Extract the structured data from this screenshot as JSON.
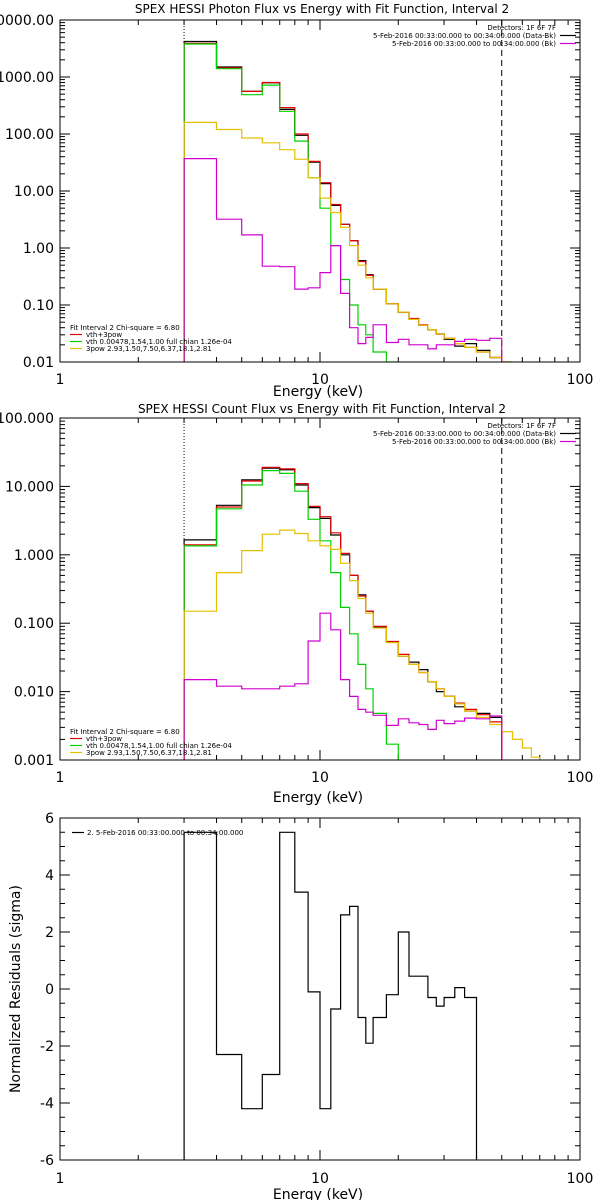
{
  "colors": {
    "black": "#000000",
    "red": "#e00000",
    "green": "#00d000",
    "yellow": "#e6c000",
    "magenta": "#d000d0"
  },
  "chart_data": [
    {
      "type": "line",
      "title": "SPEX HESSI Photon Flux vs Energy with Fit Function, Interval 2",
      "xlabel": "Energy (keV)",
      "ylabel": "",
      "xscale": "log",
      "yscale": "log",
      "xlim": [
        1,
        100
      ],
      "ylim": [
        0.01,
        10000
      ],
      "xticks": [
        {
          "v": 1,
          "label": "1"
        },
        {
          "v": 10,
          "label": "10"
        },
        {
          "v": 100,
          "label": "100"
        }
      ],
      "yticks": [
        {
          "v": 10000,
          "label": "10000.00"
        },
        {
          "v": 1000,
          "label": "1000.00"
        },
        {
          "v": 100,
          "label": "100.00"
        },
        {
          "v": 10,
          "label": "10.00"
        },
        {
          "v": 1,
          "label": "1.00"
        },
        {
          "v": 0.1,
          "label": "0.10"
        },
        {
          "v": 0.01,
          "label": "0.01"
        }
      ],
      "vlines": [
        {
          "x": 3,
          "style": "dotted"
        },
        {
          "x": 50,
          "style": "dashed"
        }
      ],
      "legend_top": [
        {
          "text": "Detectors: 1F 6F 7F",
          "color": "black"
        },
        {
          "text": "5-Feb-2016 00:33:00.000 to 00:34:00.000 (Data-Bk)",
          "color": "black"
        },
        {
          "text": "5-Feb-2016 00:33:00.000 to 00:34:00.000 (Bk)",
          "color": "magenta"
        }
      ],
      "legend_bottom": [
        {
          "text": "Fit Interval 2   Chi-square = 6.80",
          "color": "black"
        },
        {
          "text": "vth+3pow",
          "color": "red"
        },
        {
          "text": "vth 0.00478,1.54,1.00  full chian 1.26e-04",
          "color": "green"
        },
        {
          "text": "3pow 2.93,1.50,7.50,6.37,18.1,2.81",
          "color": "yellow"
        }
      ],
      "edges": [
        3,
        4,
        5,
        6,
        7,
        8,
        9,
        10,
        11,
        12,
        13,
        14,
        15,
        16,
        18,
        20,
        22,
        24,
        26,
        28,
        30,
        33,
        36,
        40,
        45,
        50,
        55
      ],
      "series": [
        {
          "color": "black",
          "values": [
            4200,
            1500,
            560,
            790,
            270,
            95,
            32,
            13.5,
            5.6,
            2.6,
            1.35,
            0.6,
            0.34,
            0.19,
            0.105,
            0.075,
            0.056,
            0.044,
            0.037,
            0.031,
            0.025,
            0.019,
            0.021,
            0.016,
            0.012,
            null
          ]
        },
        {
          "color": "red",
          "values": [
            3900,
            1450,
            560,
            800,
            290,
            100,
            33,
            14,
            5.8,
            2.6,
            1.35,
            0.58,
            0.33,
            0.19,
            0.105,
            0.075,
            0.058,
            0.045,
            0.037,
            0.031,
            0.026,
            0.021,
            0.018,
            0.015,
            0.012,
            0.01
          ]
        },
        {
          "color": "green",
          "values": [
            3800,
            1400,
            490,
            720,
            250,
            75,
            17,
            5,
            1.1,
            0.28,
            0.1,
            0.045,
            0.03,
            0.015,
            0.01,
            null,
            null,
            null,
            null,
            null,
            null,
            null,
            null,
            null,
            null,
            null
          ]
        },
        {
          "color": "yellow",
          "values": [
            160,
            120,
            85,
            70,
            53,
            36,
            17,
            7.5,
            4.2,
            2.3,
            1.1,
            0.5,
            0.3,
            0.19,
            0.105,
            0.075,
            0.056,
            0.044,
            0.037,
            0.031,
            0.026,
            0.021,
            0.018,
            0.015,
            0.012,
            0.01
          ]
        },
        {
          "color": "magenta",
          "values": [
            37,
            3.2,
            1.7,
            0.48,
            0.47,
            0.19,
            0.2,
            0.37,
            1.1,
            0.16,
            0.04,
            0.021,
            0.027,
            0.045,
            0.022,
            0.025,
            0.02,
            0.02,
            0.017,
            0.02,
            0.02,
            0.023,
            0.025,
            0.024,
            0.026,
            null
          ]
        }
      ]
    },
    {
      "type": "line",
      "title": "SPEX HESSI Count Flux vs Energy with Fit Function, Interval 2",
      "xlabel": "Energy (keV)",
      "ylabel": "",
      "xscale": "log",
      "yscale": "log",
      "xlim": [
        1,
        100
      ],
      "ylim": [
        0.001,
        100
      ],
      "xticks": [
        {
          "v": 1,
          "label": "1"
        },
        {
          "v": 10,
          "label": "10"
        },
        {
          "v": 100,
          "label": "100"
        }
      ],
      "yticks": [
        {
          "v": 100,
          "label": "100.000"
        },
        {
          "v": 10,
          "label": "10.000"
        },
        {
          "v": 1,
          "label": "1.000"
        },
        {
          "v": 0.1,
          "label": "0.100"
        },
        {
          "v": 0.01,
          "label": "0.010"
        },
        {
          "v": 0.001,
          "label": "0.001"
        }
      ],
      "vlines": [
        {
          "x": 3,
          "style": "dotted"
        },
        {
          "x": 50,
          "style": "dashed"
        }
      ],
      "legend_top": [
        {
          "text": "Detectors: 1F 6F 7F",
          "color": "black"
        },
        {
          "text": "5-Feb-2016 00:33:00.000 to 00:34:00.000 (Data-Bk)",
          "color": "black"
        },
        {
          "text": "5-Feb-2016 00:33:00.000 to 00:34:00.000 (Bk)",
          "color": "magenta"
        }
      ],
      "legend_bottom": [
        {
          "text": "Fit Interval 2   Chi-square = 6.80",
          "color": "black"
        },
        {
          "text": "vth+3pow",
          "color": "red"
        },
        {
          "text": "vth 0.00478,1.54,1.00  full chian 1.26e-04",
          "color": "green"
        },
        {
          "text": "3pow 2.93,1.50,7.50,6.37,18.1,2.81",
          "color": "yellow"
        }
      ],
      "edges": [
        3,
        4,
        5,
        6,
        7,
        8,
        9,
        10,
        11,
        12,
        13,
        14,
        15,
        16,
        18,
        20,
        22,
        24,
        26,
        28,
        30,
        33,
        36,
        40,
        45,
        50,
        55,
        60,
        65,
        70
      ],
      "series": [
        {
          "color": "black",
          "values": [
            1.65,
            5.3,
            12.5,
            18.5,
            17.5,
            10.5,
            4.9,
            3.4,
            1.95,
            1.0,
            0.5,
            0.26,
            0.15,
            0.088,
            0.053,
            0.033,
            0.027,
            0.021,
            0.014,
            0.01,
            0.0085,
            0.006,
            0.0052,
            0.0048,
            0.0042,
            null,
            null,
            null,
            null
          ]
        },
        {
          "color": "red",
          "values": [
            1.4,
            5.0,
            12,
            19,
            18,
            11,
            5.1,
            3.6,
            2.1,
            1.05,
            0.5,
            0.25,
            0.15,
            0.09,
            0.054,
            0.035,
            0.025,
            0.019,
            0.014,
            0.011,
            0.0085,
            0.0068,
            0.0055,
            0.0046,
            0.0036,
            null,
            null,
            null,
            null
          ]
        },
        {
          "color": "green",
          "values": [
            1.35,
            4.7,
            10.5,
            17,
            15.5,
            8.5,
            3.3,
            1.6,
            0.55,
            0.17,
            0.07,
            0.025,
            0.011,
            0.0048,
            0.0017,
            null,
            null,
            null,
            null,
            null,
            null,
            null,
            null,
            null,
            null,
            null,
            null,
            null,
            null
          ]
        },
        {
          "color": "yellow",
          "values": [
            0.15,
            0.55,
            1.15,
            2.0,
            2.3,
            2.05,
            1.6,
            1.35,
            1.2,
            0.75,
            0.42,
            0.23,
            0.14,
            0.085,
            0.052,
            0.033,
            0.025,
            0.019,
            0.014,
            0.011,
            0.0085,
            0.0066,
            0.0052,
            0.0042,
            0.0033,
            0.0026,
            0.002,
            0.0015,
            0.0011
          ]
        },
        {
          "color": "magenta",
          "values": [
            0.015,
            0.012,
            0.011,
            0.011,
            0.012,
            0.013,
            0.055,
            0.14,
            0.08,
            0.015,
            0.0085,
            0.0055,
            0.005,
            0.0045,
            0.0032,
            0.004,
            0.0035,
            0.0033,
            0.0028,
            0.0038,
            0.0034,
            0.0037,
            0.0041,
            0.004,
            0.0044,
            null,
            null,
            null,
            null
          ]
        }
      ]
    },
    {
      "type": "line",
      "title": "",
      "xlabel": "Energy (keV)",
      "ylabel": "Normalized Residuals (sigma)",
      "xscale": "log",
      "yscale": "linear",
      "xlim": [
        1,
        100
      ],
      "ylim": [
        -6,
        6
      ],
      "xticks": [
        {
          "v": 1,
          "label": "1"
        },
        {
          "v": 10,
          "label": "10"
        },
        {
          "v": 100,
          "label": "100"
        }
      ],
      "yticks": [
        {
          "v": 6,
          "label": "6"
        },
        {
          "v": 4,
          "label": "4"
        },
        {
          "v": 2,
          "label": "2"
        },
        {
          "v": 0,
          "label": "0"
        },
        {
          "v": -2,
          "label": "-2"
        },
        {
          "v": -4,
          "label": "-4"
        },
        {
          "v": -6,
          "label": "-6"
        }
      ],
      "vlines": [],
      "legend_top": [
        {
          "text": "2. 5-Feb-2016 00:33:00.000 to 00:34:00.000",
          "color": "black"
        }
      ],
      "legend_bottom": [],
      "edges": [
        3,
        4,
        5,
        6,
        7,
        8,
        9,
        10,
        11,
        12,
        13,
        14,
        15,
        16,
        18,
        20,
        22,
        24,
        26,
        28,
        30,
        33,
        36,
        40,
        45,
        50
      ],
      "series": [
        {
          "color": "black",
          "values": [
            5.5,
            -2.3,
            -4.2,
            -3.0,
            5.5,
            3.4,
            -0.1,
            -4.2,
            -0.7,
            2.6,
            2.9,
            -1.0,
            -1.9,
            -1.0,
            -0.2,
            2.0,
            0.45,
            0.45,
            -0.3,
            -0.6,
            -0.3,
            0.05,
            -0.3,
            null,
            null
          ]
        }
      ]
    }
  ]
}
